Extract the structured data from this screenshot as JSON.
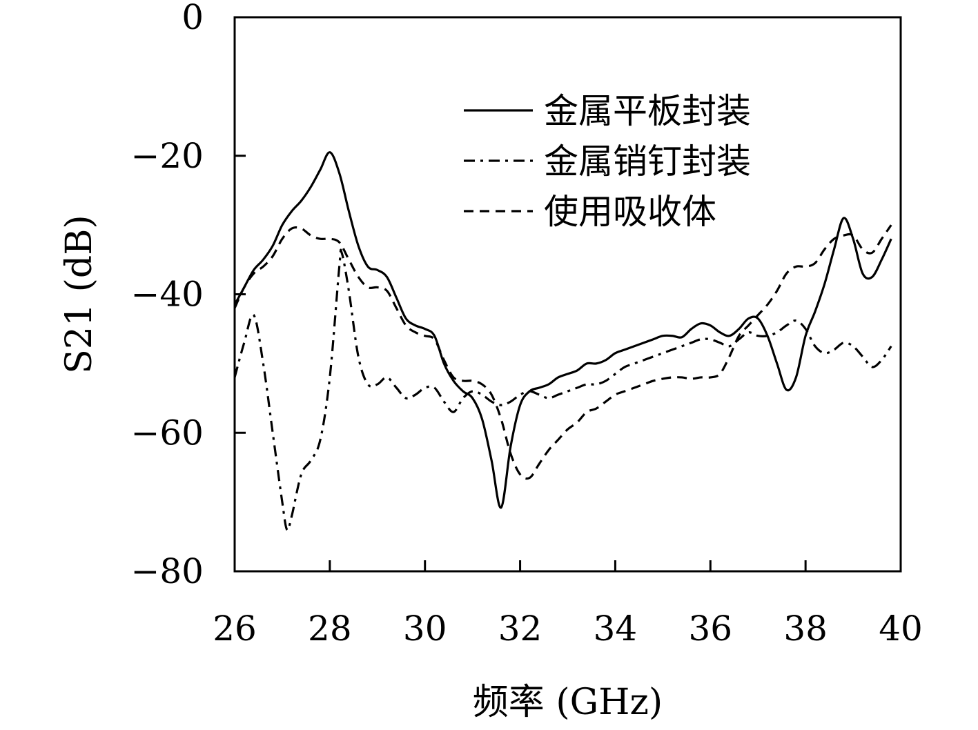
{
  "chart_data": {
    "type": "line",
    "title": "",
    "xlabel": "频率 (GHz)",
    "ylabel": "S21 (dB)",
    "xlim": [
      26,
      40
    ],
    "ylim": [
      -80,
      0
    ],
    "xticks": [
      26,
      28,
      30,
      32,
      34,
      36,
      38,
      40
    ],
    "yticks": [
      0,
      -20,
      -40,
      -60,
      -80
    ],
    "xtick_labels": [
      "26",
      "28",
      "30",
      "32",
      "34",
      "36",
      "38",
      "40"
    ],
    "ytick_labels": [
      "0",
      "−20",
      "−40",
      "−60",
      "−80"
    ],
    "grid": false,
    "legend_position": "top-right",
    "series": [
      {
        "name": "金属平板封装",
        "style": "solid",
        "color": "#000000",
        "points": [
          [
            26.0,
            -41.5
          ],
          [
            26.2,
            -39.0
          ],
          [
            26.4,
            -36.5
          ],
          [
            26.6,
            -35.0
          ],
          [
            26.8,
            -33.0
          ],
          [
            27.0,
            -30.0
          ],
          [
            27.2,
            -28.0
          ],
          [
            27.4,
            -26.5
          ],
          [
            27.6,
            -24.5
          ],
          [
            27.8,
            -22.0
          ],
          [
            28.0,
            -19.5
          ],
          [
            28.2,
            -22.5
          ],
          [
            28.4,
            -28.0
          ],
          [
            28.6,
            -33.0
          ],
          [
            28.8,
            -36.0
          ],
          [
            29.0,
            -36.5
          ],
          [
            29.2,
            -37.5
          ],
          [
            29.4,
            -40.5
          ],
          [
            29.6,
            -43.5
          ],
          [
            29.8,
            -44.5
          ],
          [
            30.0,
            -45.0
          ],
          [
            30.2,
            -46.0
          ],
          [
            30.4,
            -50.0
          ],
          [
            30.6,
            -52.5
          ],
          [
            30.8,
            -54.0
          ],
          [
            31.0,
            -55.0
          ],
          [
            31.2,
            -58.0
          ],
          [
            31.4,
            -64.0
          ],
          [
            31.6,
            -70.8
          ],
          [
            31.8,
            -62.0
          ],
          [
            32.0,
            -56.0
          ],
          [
            32.2,
            -54.0
          ],
          [
            32.4,
            -53.5
          ],
          [
            32.6,
            -53.0
          ],
          [
            32.8,
            -52.0
          ],
          [
            33.0,
            -51.5
          ],
          [
            33.2,
            -51.0
          ],
          [
            33.4,
            -50.0
          ],
          [
            33.6,
            -50.0
          ],
          [
            33.8,
            -49.5
          ],
          [
            34.0,
            -48.5
          ],
          [
            34.2,
            -48.0
          ],
          [
            34.4,
            -47.5
          ],
          [
            34.6,
            -47.0
          ],
          [
            34.8,
            -46.5
          ],
          [
            35.0,
            -46.0
          ],
          [
            35.2,
            -46.0
          ],
          [
            35.4,
            -46.2
          ],
          [
            35.6,
            -45.0
          ],
          [
            35.8,
            -44.2
          ],
          [
            36.0,
            -44.5
          ],
          [
            36.2,
            -45.5
          ],
          [
            36.4,
            -46.0
          ],
          [
            36.6,
            -45.0
          ],
          [
            36.8,
            -43.5
          ],
          [
            37.0,
            -43.5
          ],
          [
            37.2,
            -46.0
          ],
          [
            37.4,
            -50.0
          ],
          [
            37.6,
            -53.8
          ],
          [
            37.8,
            -52.0
          ],
          [
            38.0,
            -46.0
          ],
          [
            38.2,
            -42.5
          ],
          [
            38.4,
            -38.5
          ],
          [
            38.6,
            -33.5
          ],
          [
            38.8,
            -29.0
          ],
          [
            39.0,
            -32.0
          ],
          [
            39.2,
            -37.0
          ],
          [
            39.4,
            -37.5
          ],
          [
            39.6,
            -35.0
          ],
          [
            39.8,
            -32.0
          ]
        ]
      },
      {
        "name": "金属销钉封装",
        "style": "dashdot",
        "color": "#000000",
        "points": [
          [
            26.0,
            -52.0
          ],
          [
            26.2,
            -47.0
          ],
          [
            26.4,
            -43.0
          ],
          [
            26.6,
            -50.0
          ],
          [
            26.8,
            -60.0
          ],
          [
            27.0,
            -70.0
          ],
          [
            27.1,
            -74.0
          ],
          [
            27.2,
            -72.0
          ],
          [
            27.4,
            -66.0
          ],
          [
            27.6,
            -64.0
          ],
          [
            27.8,
            -61.0
          ],
          [
            28.0,
            -52.0
          ],
          [
            28.2,
            -36.0
          ],
          [
            28.25,
            -34.0
          ],
          [
            28.4,
            -39.5
          ],
          [
            28.6,
            -49.0
          ],
          [
            28.8,
            -53.0
          ],
          [
            29.0,
            -53.0
          ],
          [
            29.2,
            -52.0
          ],
          [
            29.4,
            -53.5
          ],
          [
            29.6,
            -55.0
          ],
          [
            29.8,
            -54.5
          ],
          [
            30.0,
            -53.5
          ],
          [
            30.2,
            -53.5
          ],
          [
            30.4,
            -55.5
          ],
          [
            30.6,
            -57.0
          ],
          [
            30.8,
            -55.0
          ],
          [
            31.0,
            -54.0
          ],
          [
            31.2,
            -54.5
          ],
          [
            31.4,
            -55.5
          ],
          [
            31.6,
            -56.0
          ],
          [
            31.8,
            -55.5
          ],
          [
            32.0,
            -54.5
          ],
          [
            32.2,
            -54.0
          ],
          [
            32.4,
            -54.5
          ],
          [
            32.6,
            -55.0
          ],
          [
            32.8,
            -54.5
          ],
          [
            33.0,
            -54.0
          ],
          [
            33.2,
            -53.5
          ],
          [
            33.4,
            -53.0
          ],
          [
            33.6,
            -53.0
          ],
          [
            33.8,
            -52.5
          ],
          [
            34.0,
            -51.5
          ],
          [
            34.2,
            -50.5
          ],
          [
            34.4,
            -50.0
          ],
          [
            34.6,
            -49.5
          ],
          [
            34.8,
            -49.0
          ],
          [
            35.0,
            -48.5
          ],
          [
            35.2,
            -48.0
          ],
          [
            35.4,
            -47.5
          ],
          [
            35.6,
            -47.0
          ],
          [
            35.8,
            -46.5
          ],
          [
            36.0,
            -46.5
          ],
          [
            36.2,
            -47.0
          ],
          [
            36.4,
            -47.5
          ],
          [
            36.6,
            -46.5
          ],
          [
            36.8,
            -45.5
          ],
          [
            37.0,
            -46.0
          ],
          [
            37.2,
            -46.0
          ],
          [
            37.4,
            -45.5
          ],
          [
            37.6,
            -44.5
          ],
          [
            37.8,
            -43.8
          ],
          [
            38.0,
            -45.0
          ],
          [
            38.2,
            -47.5
          ],
          [
            38.4,
            -48.5
          ],
          [
            38.6,
            -48.0
          ],
          [
            38.8,
            -47.0
          ],
          [
            39.0,
            -47.5
          ],
          [
            39.2,
            -49.0
          ],
          [
            39.4,
            -50.5
          ],
          [
            39.6,
            -49.5
          ],
          [
            39.8,
            -47.5
          ]
        ]
      },
      {
        "name": "使用吸收体",
        "style": "dashed",
        "color": "#000000",
        "points": [
          [
            26.0,
            -42.0
          ],
          [
            26.2,
            -39.0
          ],
          [
            26.4,
            -37.0
          ],
          [
            26.6,
            -36.0
          ],
          [
            26.8,
            -34.5
          ],
          [
            27.0,
            -32.0
          ],
          [
            27.2,
            -30.5
          ],
          [
            27.4,
            -30.5
          ],
          [
            27.6,
            -31.5
          ],
          [
            27.8,
            -32.0
          ],
          [
            28.0,
            -32.0
          ],
          [
            28.2,
            -32.5
          ],
          [
            28.4,
            -35.0
          ],
          [
            28.6,
            -37.5
          ],
          [
            28.8,
            -39.0
          ],
          [
            29.0,
            -39.0
          ],
          [
            29.2,
            -39.5
          ],
          [
            29.4,
            -42.0
          ],
          [
            29.6,
            -44.5
          ],
          [
            29.8,
            -45.5
          ],
          [
            30.0,
            -46.0
          ],
          [
            30.2,
            -46.5
          ],
          [
            30.4,
            -49.5
          ],
          [
            30.6,
            -52.0
          ],
          [
            30.8,
            -52.5
          ],
          [
            31.0,
            -52.5
          ],
          [
            31.2,
            -53.0
          ],
          [
            31.4,
            -54.5
          ],
          [
            31.6,
            -58.0
          ],
          [
            31.8,
            -63.0
          ],
          [
            32.0,
            -66.0
          ],
          [
            32.2,
            -66.5
          ],
          [
            32.4,
            -64.5
          ],
          [
            32.6,
            -62.5
          ],
          [
            32.8,
            -61.0
          ],
          [
            33.0,
            -59.5
          ],
          [
            33.2,
            -58.5
          ],
          [
            33.4,
            -57.0
          ],
          [
            33.6,
            -56.5
          ],
          [
            33.8,
            -55.5
          ],
          [
            34.0,
            -54.5
          ],
          [
            34.2,
            -54.0
          ],
          [
            34.4,
            -53.5
          ],
          [
            34.6,
            -53.0
          ],
          [
            34.8,
            -52.5
          ],
          [
            35.0,
            -52.2
          ],
          [
            35.2,
            -52.0
          ],
          [
            35.4,
            -52.0
          ],
          [
            35.6,
            -52.2
          ],
          [
            35.8,
            -52.0
          ],
          [
            36.0,
            -52.0
          ],
          [
            36.2,
            -51.5
          ],
          [
            36.4,
            -49.0
          ],
          [
            36.6,
            -46.0
          ],
          [
            36.8,
            -44.5
          ],
          [
            37.0,
            -43.0
          ],
          [
            37.2,
            -41.5
          ],
          [
            37.4,
            -39.5
          ],
          [
            37.6,
            -37.0
          ],
          [
            37.8,
            -36.0
          ],
          [
            38.0,
            -36.0
          ],
          [
            38.2,
            -35.5
          ],
          [
            38.4,
            -33.5
          ],
          [
            38.6,
            -32.0
          ],
          [
            38.8,
            -31.5
          ],
          [
            39.0,
            -31.5
          ],
          [
            39.2,
            -33.5
          ],
          [
            39.4,
            -34.0
          ],
          [
            39.6,
            -32.0
          ],
          [
            39.8,
            -30.0
          ]
        ]
      }
    ]
  }
}
